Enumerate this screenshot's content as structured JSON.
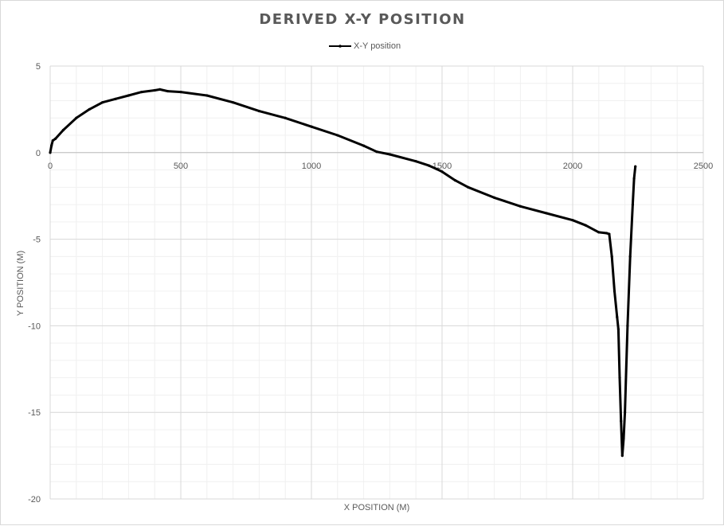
{
  "chart_data": {
    "type": "scatter",
    "title": "DERIVED X-Y POSITION",
    "xlabel": "X POSITION (M)",
    "ylabel": "Y POSITION (M)",
    "xlim": [
      0,
      2500
    ],
    "ylim": [
      -20,
      5
    ],
    "x_ticks": [
      0,
      500,
      1000,
      1500,
      2000,
      2500
    ],
    "y_ticks": [
      5,
      0,
      -5,
      -10,
      -15,
      -20
    ],
    "x_tick_labels": [
      "0",
      "500",
      "1000",
      "1500",
      "2000",
      "2500"
    ],
    "y_tick_labels": [
      "5",
      "0",
      "-5",
      "-10",
      "-15",
      "-20"
    ],
    "grid": {
      "major": true,
      "minor": true
    },
    "legend_position": "top-center",
    "line_color": "#000000",
    "series": [
      {
        "name": "X-Y position",
        "x": [
          0,
          5,
          10,
          20,
          50,
          100,
          150,
          200,
          250,
          300,
          350,
          400,
          420,
          450,
          500,
          600,
          700,
          800,
          900,
          1000,
          1100,
          1200,
          1250,
          1300,
          1400,
          1450,
          1480,
          1500,
          1550,
          1600,
          1700,
          1800,
          1900,
          2000,
          2050,
          2100,
          2130,
          2140,
          2150,
          2160,
          2170,
          2175,
          2180,
          2185,
          2190,
          2195,
          2200,
          2210,
          2220,
          2230,
          2235,
          2240
        ],
        "y": [
          0,
          0.4,
          0.7,
          0.8,
          1.3,
          2.0,
          2.5,
          2.9,
          3.1,
          3.3,
          3.5,
          3.6,
          3.65,
          3.55,
          3.5,
          3.3,
          2.9,
          2.4,
          2.0,
          1.5,
          1.0,
          0.4,
          0.05,
          -0.1,
          -0.5,
          -0.75,
          -0.95,
          -1.1,
          -1.6,
          -2.0,
          -2.6,
          -3.1,
          -3.5,
          -3.9,
          -4.2,
          -4.6,
          -4.65,
          -4.7,
          -6.0,
          -8.0,
          -9.5,
          -10.2,
          -13.0,
          -15.5,
          -17.5,
          -16.5,
          -15.0,
          -10.0,
          -6.0,
          -3.0,
          -1.5,
          -0.8
        ]
      }
    ]
  }
}
